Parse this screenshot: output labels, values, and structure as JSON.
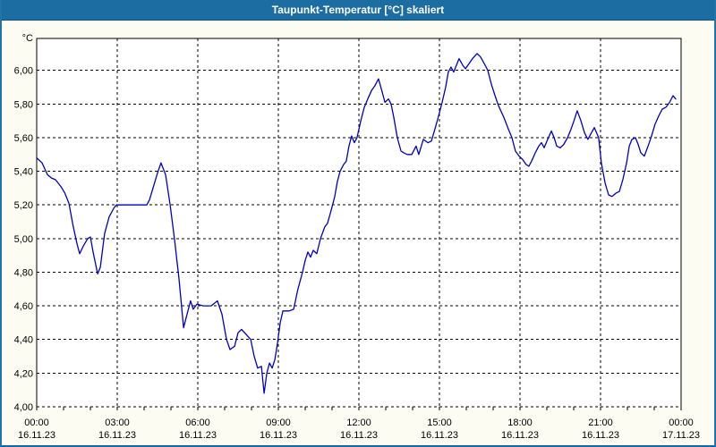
{
  "window": {
    "title": "Taupunkt-Temperatur [°C] skaliert"
  },
  "colors": {
    "titlebar_bg": "#1C6DA1",
    "titlebar_text": "#FFFFFF",
    "window_bg": "#FCFCF2",
    "plot_bg": "#FFFFFF",
    "grid": "#000000",
    "axis": "#000000",
    "label": "#000000",
    "line": "#0000C3",
    "border": "#2273A6"
  },
  "chart_data": {
    "type": "line",
    "title": "Taupunkt-Temperatur [°C] skaliert",
    "ylabel": "°C",
    "xlabel": "",
    "ylim": [
      4.0,
      6.19
    ],
    "xlim_hours": [
      0,
      24
    ],
    "grid": true,
    "grid_style": "dashed",
    "legend": false,
    "y_ticks": [
      {
        "value": 4.0,
        "label": "4,00"
      },
      {
        "value": 4.2,
        "label": "4,20"
      },
      {
        "value": 4.4,
        "label": "4,40"
      },
      {
        "value": 4.6,
        "label": "4,60"
      },
      {
        "value": 4.8,
        "label": "4,80"
      },
      {
        "value": 5.0,
        "label": "5,00"
      },
      {
        "value": 5.2,
        "label": "5,20"
      },
      {
        "value": 5.4,
        "label": "5,40"
      },
      {
        "value": 5.6,
        "label": "5,60"
      },
      {
        "value": 5.8,
        "label": "5,80"
      },
      {
        "value": 6.0,
        "label": "6,00"
      }
    ],
    "x_ticks": [
      {
        "hour": 0,
        "time": "00:00",
        "date": "16.11.23"
      },
      {
        "hour": 3,
        "time": "03:00",
        "date": "16.11.23"
      },
      {
        "hour": 6,
        "time": "06:00",
        "date": "16.11.23"
      },
      {
        "hour": 9,
        "time": "09:00",
        "date": "16.11.23"
      },
      {
        "hour": 12,
        "time": "12:00",
        "date": "16.11.23"
      },
      {
        "hour": 15,
        "time": "15:00",
        "date": "16.11.23"
      },
      {
        "hour": 18,
        "time": "18:00",
        "date": "16.11.23"
      },
      {
        "hour": 21,
        "time": "21:00",
        "date": "16.11.23"
      },
      {
        "hour": 24,
        "time": "00:00",
        "date": "17.11.23"
      }
    ],
    "minor_tick_every_hours": 1,
    "series": [
      {
        "name": "Taupunkt-Temperatur",
        "color": "#0000C3",
        "points": [
          [
            0.0,
            5.48
          ],
          [
            0.2,
            5.45
          ],
          [
            0.4,
            5.38
          ],
          [
            0.55,
            5.36
          ],
          [
            0.7,
            5.35
          ],
          [
            0.9,
            5.31
          ],
          [
            1.05,
            5.27
          ],
          [
            1.2,
            5.21
          ],
          [
            1.35,
            5.08
          ],
          [
            1.5,
            4.97
          ],
          [
            1.6,
            4.91
          ],
          [
            1.75,
            4.96
          ],
          [
            1.9,
            5.0
          ],
          [
            2.0,
            5.01
          ],
          [
            2.1,
            4.92
          ],
          [
            2.27,
            4.79
          ],
          [
            2.37,
            4.83
          ],
          [
            2.53,
            5.03
          ],
          [
            2.7,
            5.13
          ],
          [
            2.87,
            5.18
          ],
          [
            2.97,
            5.2
          ],
          [
            3.5,
            5.2
          ],
          [
            4.1,
            5.2
          ],
          [
            4.2,
            5.23
          ],
          [
            4.35,
            5.31
          ],
          [
            4.5,
            5.39
          ],
          [
            4.63,
            5.45
          ],
          [
            4.8,
            5.38
          ],
          [
            4.97,
            5.2
          ],
          [
            5.13,
            5.0
          ],
          [
            5.3,
            4.76
          ],
          [
            5.47,
            4.47
          ],
          [
            5.6,
            4.55
          ],
          [
            5.73,
            4.63
          ],
          [
            5.83,
            4.58
          ],
          [
            5.97,
            4.61
          ],
          [
            6.2,
            4.6
          ],
          [
            6.5,
            4.6
          ],
          [
            6.73,
            4.63
          ],
          [
            6.9,
            4.55
          ],
          [
            7.07,
            4.4
          ],
          [
            7.2,
            4.34
          ],
          [
            7.37,
            4.36
          ],
          [
            7.5,
            4.44
          ],
          [
            7.63,
            4.46
          ],
          [
            7.8,
            4.43
          ],
          [
            7.97,
            4.4
          ],
          [
            8.1,
            4.3
          ],
          [
            8.23,
            4.23
          ],
          [
            8.37,
            4.24
          ],
          [
            8.47,
            4.08
          ],
          [
            8.57,
            4.2
          ],
          [
            8.67,
            4.26
          ],
          [
            8.77,
            4.23
          ],
          [
            8.87,
            4.28
          ],
          [
            8.97,
            4.38
          ],
          [
            9.07,
            4.5
          ],
          [
            9.17,
            4.57
          ],
          [
            9.4,
            4.57
          ],
          [
            9.57,
            4.58
          ],
          [
            9.73,
            4.7
          ],
          [
            9.9,
            4.8
          ],
          [
            10.0,
            4.87
          ],
          [
            10.1,
            4.92
          ],
          [
            10.2,
            4.89
          ],
          [
            10.3,
            4.93
          ],
          [
            10.43,
            4.91
          ],
          [
            10.57,
            5.0
          ],
          [
            10.73,
            5.07
          ],
          [
            10.83,
            5.09
          ],
          [
            10.97,
            5.17
          ],
          [
            11.1,
            5.25
          ],
          [
            11.2,
            5.34
          ],
          [
            11.3,
            5.4
          ],
          [
            11.43,
            5.44
          ],
          [
            11.53,
            5.46
          ],
          [
            11.63,
            5.55
          ],
          [
            11.73,
            5.61
          ],
          [
            11.83,
            5.57
          ],
          [
            11.93,
            5.6
          ],
          [
            12.07,
            5.7
          ],
          [
            12.2,
            5.78
          ],
          [
            12.33,
            5.83
          ],
          [
            12.47,
            5.88
          ],
          [
            12.6,
            5.91
          ],
          [
            12.73,
            5.95
          ],
          [
            12.87,
            5.87
          ],
          [
            12.97,
            5.81
          ],
          [
            13.1,
            5.83
          ],
          [
            13.2,
            5.8
          ],
          [
            13.3,
            5.72
          ],
          [
            13.43,
            5.6
          ],
          [
            13.57,
            5.52
          ],
          [
            13.67,
            5.51
          ],
          [
            13.8,
            5.5
          ],
          [
            13.97,
            5.5
          ],
          [
            14.13,
            5.55
          ],
          [
            14.23,
            5.5
          ],
          [
            14.4,
            5.59
          ],
          [
            14.57,
            5.57
          ],
          [
            14.7,
            5.58
          ],
          [
            14.83,
            5.65
          ],
          [
            14.97,
            5.73
          ],
          [
            15.1,
            5.81
          ],
          [
            15.23,
            5.9
          ],
          [
            15.33,
            5.99
          ],
          [
            15.43,
            6.02
          ],
          [
            15.53,
            5.99
          ],
          [
            15.63,
            6.03
          ],
          [
            15.73,
            6.07
          ],
          [
            15.87,
            6.03
          ],
          [
            15.97,
            6.01
          ],
          [
            16.1,
            6.04
          ],
          [
            16.23,
            6.07
          ],
          [
            16.4,
            6.1
          ],
          [
            16.53,
            6.08
          ],
          [
            16.67,
            6.04
          ],
          [
            16.8,
            6.0
          ],
          [
            16.93,
            5.92
          ],
          [
            17.07,
            5.85
          ],
          [
            17.2,
            5.79
          ],
          [
            17.4,
            5.72
          ],
          [
            17.57,
            5.65
          ],
          [
            17.7,
            5.6
          ],
          [
            17.83,
            5.52
          ],
          [
            17.97,
            5.49
          ],
          [
            18.1,
            5.47
          ],
          [
            18.23,
            5.44
          ],
          [
            18.33,
            5.43
          ],
          [
            18.43,
            5.46
          ],
          [
            18.57,
            5.51
          ],
          [
            18.7,
            5.55
          ],
          [
            18.8,
            5.57
          ],
          [
            18.9,
            5.54
          ],
          [
            19.03,
            5.59
          ],
          [
            19.17,
            5.64
          ],
          [
            19.27,
            5.6
          ],
          [
            19.37,
            5.55
          ],
          [
            19.5,
            5.54
          ],
          [
            19.63,
            5.56
          ],
          [
            19.77,
            5.6
          ],
          [
            19.9,
            5.65
          ],
          [
            20.03,
            5.71
          ],
          [
            20.13,
            5.76
          ],
          [
            20.27,
            5.7
          ],
          [
            20.4,
            5.63
          ],
          [
            20.53,
            5.59
          ],
          [
            20.63,
            5.62
          ],
          [
            20.77,
            5.66
          ],
          [
            20.93,
            5.6
          ],
          [
            21.03,
            5.45
          ],
          [
            21.17,
            5.33
          ],
          [
            21.3,
            5.26
          ],
          [
            21.43,
            5.25
          ],
          [
            21.57,
            5.27
          ],
          [
            21.7,
            5.28
          ],
          [
            21.83,
            5.35
          ],
          [
            21.97,
            5.45
          ],
          [
            22.07,
            5.55
          ],
          [
            22.17,
            5.59
          ],
          [
            22.3,
            5.6
          ],
          [
            22.4,
            5.56
          ],
          [
            22.5,
            5.51
          ],
          [
            22.63,
            5.49
          ],
          [
            22.77,
            5.55
          ],
          [
            22.9,
            5.61
          ],
          [
            23.03,
            5.68
          ],
          [
            23.17,
            5.73
          ],
          [
            23.3,
            5.77
          ],
          [
            23.43,
            5.78
          ],
          [
            23.57,
            5.81
          ],
          [
            23.7,
            5.85
          ],
          [
            23.8,
            5.83
          ]
        ]
      }
    ]
  }
}
